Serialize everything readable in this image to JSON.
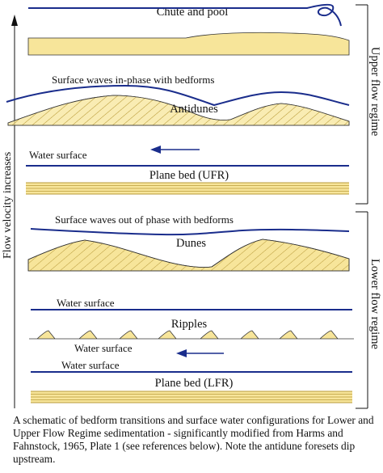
{
  "colors": {
    "sediment": "#f7e59a",
    "hatch": "#b89a3a",
    "water": "#1a2d8c",
    "text": "#111111"
  },
  "labels": {
    "chute_and_pool": "Chute and pool",
    "surface_waves_in_phase": "Surface waves in-phase with bedforms",
    "antidunes": "Antidunes",
    "water_surface_ufr": "Water surface",
    "plane_bed_ufr": "Plane bed (UFR)",
    "surface_waves_out_of_phase": "Surface waves out of phase with bedforms",
    "dunes": "Dunes",
    "water_surface_ripples": "Water surface",
    "ripples": "Ripples",
    "water_surface_lfr_a": "Water surface",
    "water_surface_lfr_b": "Water surface",
    "plane_bed_lfr": "Plane bed (LFR)"
  },
  "axes": {
    "flow_velocity": "Flow velocity increases",
    "upper_flow_regime": "Upper flow regime",
    "lower_flow_regime": "Lower flow regime"
  },
  "caption": "A schematic of bedform transitions and surface water configurations for Lower and Upper Flow Regime sedimentation - significantly modified from Harms and Fahnstock, 1965, Plate 1 (see references below). Note the antidune foresets dip upstream."
}
